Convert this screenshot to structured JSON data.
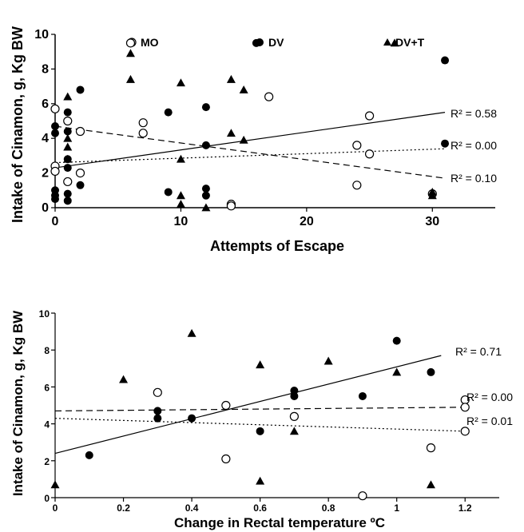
{
  "chart_data": [
    {
      "type": "scatter",
      "xlabel": "Attempts of Escape",
      "ylabel": "Intake of Cinamon, g, Kg BW",
      "xlim": [
        0,
        35
      ],
      "ylim": [
        0,
        10
      ],
      "xticks": [
        "0",
        "10",
        "20",
        "30"
      ],
      "yticks": [
        "0",
        "2",
        "4",
        "6",
        "8",
        "10"
      ],
      "grid": false,
      "legend_position": "top",
      "series": [
        {
          "name": "MO",
          "marker": "open-circle",
          "points": [
            [
              0,
              5.7
            ],
            [
              0,
              2.4
            ],
            [
              0,
              2.1
            ],
            [
              1,
              5.0
            ],
            [
              1,
              1.5
            ],
            [
              2,
              4.4
            ],
            [
              2,
              2.0
            ],
            [
              6,
              9.5
            ],
            [
              7,
              4.9
            ],
            [
              7,
              4.3
            ],
            [
              14,
              0.2
            ],
            [
              14,
              0.1
            ],
            [
              17,
              6.4
            ],
            [
              24,
              3.6
            ],
            [
              24,
              1.3
            ],
            [
              25,
              5.3
            ],
            [
              25,
              3.1
            ],
            [
              30,
              0.8
            ]
          ],
          "trend": {
            "style": "solid",
            "x": [
              0,
              31
            ],
            "y": [
              2.3,
              5.5
            ],
            "label": "R² = 0.58"
          }
        },
        {
          "name": "DV",
          "marker": "filled-circle",
          "points": [
            [
              0,
              4.7
            ],
            [
              0,
              4.3
            ],
            [
              0,
              1.0
            ],
            [
              0,
              0.7
            ],
            [
              0,
              0.5
            ],
            [
              1,
              5.5
            ],
            [
              1,
              4.4
            ],
            [
              1,
              2.8
            ],
            [
              1,
              2.3
            ],
            [
              1,
              0.8
            ],
            [
              1,
              0.4
            ],
            [
              2,
              6.8
            ],
            [
              2,
              1.3
            ],
            [
              9,
              5.5
            ],
            [
              9,
              0.9
            ],
            [
              12,
              5.8
            ],
            [
              12,
              3.6
            ],
            [
              12,
              1.1
            ],
            [
              12,
              0.7
            ],
            [
              16,
              9.5
            ],
            [
              31,
              8.5
            ],
            [
              31,
              3.7
            ]
          ],
          "trend": {
            "style": "dashed",
            "x": [
              0,
              31
            ],
            "y": [
              4.7,
              1.7
            ],
            "label": "R² = 0.10"
          }
        },
        {
          "name": "DV+T",
          "marker": "filled-triangle",
          "points": [
            [
              1,
              6.4
            ],
            [
              1,
              4.0
            ],
            [
              1,
              3.5
            ],
            [
              1,
              2.8
            ],
            [
              6,
              8.9
            ],
            [
              6,
              7.4
            ],
            [
              10,
              7.2
            ],
            [
              10,
              2.8
            ],
            [
              10,
              0.7
            ],
            [
              10,
              0.2
            ],
            [
              12,
              0.0
            ],
            [
              14,
              7.4
            ],
            [
              14,
              4.3
            ],
            [
              15,
              6.8
            ],
            [
              15,
              3.9
            ],
            [
              27,
              9.5
            ],
            [
              30,
              0.9
            ],
            [
              30,
              0.7
            ]
          ],
          "trend": {
            "style": "dotted",
            "x": [
              0,
              31
            ],
            "y": [
              2.6,
              3.4
            ],
            "label": "R² = 0.00"
          }
        }
      ]
    },
    {
      "type": "scatter",
      "xlabel": "Change in Rectal temperature ºC",
      "ylabel": "Intake of Cinamon, g, Kg BW",
      "xlim": [
        0,
        1.3
      ],
      "ylim": [
        0,
        10
      ],
      "xticks": [
        "0",
        "0.2",
        "0.4",
        "0.6",
        "0.8",
        "1",
        "1.2"
      ],
      "yticks": [
        "0",
        "2",
        "4",
        "6",
        "8",
        "10"
      ],
      "grid": false,
      "series": [
        {
          "name": "MO",
          "marker": "open-circle",
          "points": [
            [
              0.3,
              5.7
            ],
            [
              0.5,
              5.0
            ],
            [
              0.5,
              2.1
            ],
            [
              0.7,
              4.4
            ],
            [
              0.9,
              0.1
            ],
            [
              1.1,
              2.7
            ],
            [
              1.2,
              5.3
            ],
            [
              1.2,
              4.9
            ],
            [
              1.2,
              3.6
            ]
          ],
          "trend": {
            "style": "dotted",
            "x": [
              0,
              1.2
            ],
            "y": [
              4.3,
              3.6
            ],
            "label": "R² = 0.01"
          }
        },
        {
          "name": "DV",
          "marker": "filled-circle",
          "points": [
            [
              0.1,
              2.3
            ],
            [
              0.3,
              4.7
            ],
            [
              0.3,
              4.3
            ],
            [
              0.4,
              4.3
            ],
            [
              0.6,
              3.6
            ],
            [
              0.7,
              5.8
            ],
            [
              0.7,
              5.5
            ],
            [
              0.9,
              5.5
            ],
            [
              1.0,
              8.5
            ],
            [
              1.1,
              6.8
            ]
          ],
          "trend": {
            "style": "solid",
            "x": [
              0,
              1.13
            ],
            "y": [
              2.4,
              7.7
            ],
            "label": "R² = 0.71"
          }
        },
        {
          "name": "DV+T",
          "marker": "filled-triangle",
          "points": [
            [
              0,
              0.7
            ],
            [
              0.2,
              6.4
            ],
            [
              0.4,
              8.9
            ],
            [
              0.6,
              7.2
            ],
            [
              0.6,
              0.9
            ],
            [
              0.7,
              3.6
            ],
            [
              0.8,
              7.4
            ],
            [
              1.0,
              6.8
            ],
            [
              1.1,
              0.7
            ]
          ],
          "trend": {
            "style": "dashed",
            "x": [
              0,
              1.2
            ],
            "y": [
              4.7,
              4.9
            ],
            "label": "R² = 0.00"
          }
        }
      ]
    }
  ]
}
